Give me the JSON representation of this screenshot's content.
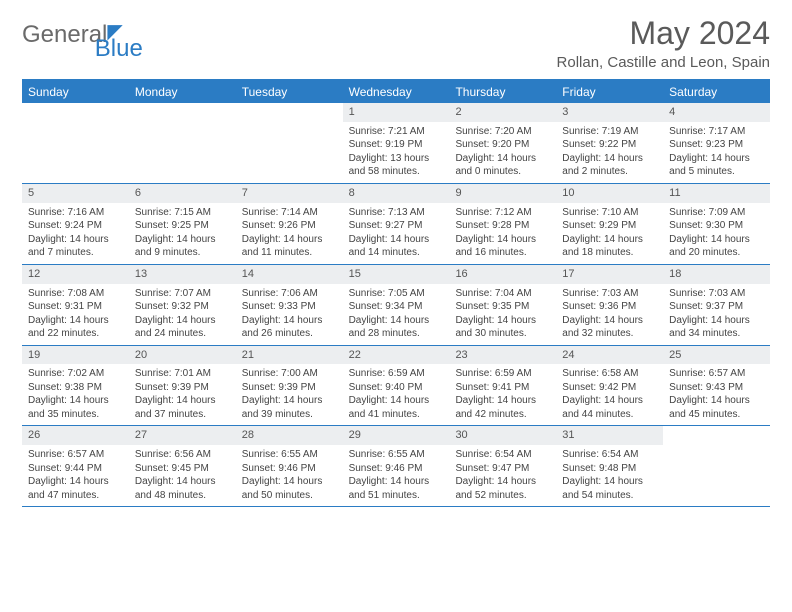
{
  "logo": {
    "general": "General",
    "blue": "Blue"
  },
  "title": "May 2024",
  "location": "Rollan, Castille and Leon, Spain",
  "header_bg": "#2b7cc4",
  "weekdays": [
    "Sunday",
    "Monday",
    "Tuesday",
    "Wednesday",
    "Thursday",
    "Friday",
    "Saturday"
  ],
  "weeks": [
    [
      {
        "n": "",
        "sr": "",
        "ss": "",
        "dl": "",
        "empty": true
      },
      {
        "n": "",
        "sr": "",
        "ss": "",
        "dl": "",
        "empty": true
      },
      {
        "n": "",
        "sr": "",
        "ss": "",
        "dl": "",
        "empty": true
      },
      {
        "n": "1",
        "sr": "Sunrise: 7:21 AM",
        "ss": "Sunset: 9:19 PM",
        "dl": "Daylight: 13 hours and 58 minutes."
      },
      {
        "n": "2",
        "sr": "Sunrise: 7:20 AM",
        "ss": "Sunset: 9:20 PM",
        "dl": "Daylight: 14 hours and 0 minutes."
      },
      {
        "n": "3",
        "sr": "Sunrise: 7:19 AM",
        "ss": "Sunset: 9:22 PM",
        "dl": "Daylight: 14 hours and 2 minutes."
      },
      {
        "n": "4",
        "sr": "Sunrise: 7:17 AM",
        "ss": "Sunset: 9:23 PM",
        "dl": "Daylight: 14 hours and 5 minutes."
      }
    ],
    [
      {
        "n": "5",
        "sr": "Sunrise: 7:16 AM",
        "ss": "Sunset: 9:24 PM",
        "dl": "Daylight: 14 hours and 7 minutes."
      },
      {
        "n": "6",
        "sr": "Sunrise: 7:15 AM",
        "ss": "Sunset: 9:25 PM",
        "dl": "Daylight: 14 hours and 9 minutes."
      },
      {
        "n": "7",
        "sr": "Sunrise: 7:14 AM",
        "ss": "Sunset: 9:26 PM",
        "dl": "Daylight: 14 hours and 11 minutes."
      },
      {
        "n": "8",
        "sr": "Sunrise: 7:13 AM",
        "ss": "Sunset: 9:27 PM",
        "dl": "Daylight: 14 hours and 14 minutes."
      },
      {
        "n": "9",
        "sr": "Sunrise: 7:12 AM",
        "ss": "Sunset: 9:28 PM",
        "dl": "Daylight: 14 hours and 16 minutes."
      },
      {
        "n": "10",
        "sr": "Sunrise: 7:10 AM",
        "ss": "Sunset: 9:29 PM",
        "dl": "Daylight: 14 hours and 18 minutes."
      },
      {
        "n": "11",
        "sr": "Sunrise: 7:09 AM",
        "ss": "Sunset: 9:30 PM",
        "dl": "Daylight: 14 hours and 20 minutes."
      }
    ],
    [
      {
        "n": "12",
        "sr": "Sunrise: 7:08 AM",
        "ss": "Sunset: 9:31 PM",
        "dl": "Daylight: 14 hours and 22 minutes."
      },
      {
        "n": "13",
        "sr": "Sunrise: 7:07 AM",
        "ss": "Sunset: 9:32 PM",
        "dl": "Daylight: 14 hours and 24 minutes."
      },
      {
        "n": "14",
        "sr": "Sunrise: 7:06 AM",
        "ss": "Sunset: 9:33 PM",
        "dl": "Daylight: 14 hours and 26 minutes."
      },
      {
        "n": "15",
        "sr": "Sunrise: 7:05 AM",
        "ss": "Sunset: 9:34 PM",
        "dl": "Daylight: 14 hours and 28 minutes."
      },
      {
        "n": "16",
        "sr": "Sunrise: 7:04 AM",
        "ss": "Sunset: 9:35 PM",
        "dl": "Daylight: 14 hours and 30 minutes."
      },
      {
        "n": "17",
        "sr": "Sunrise: 7:03 AM",
        "ss": "Sunset: 9:36 PM",
        "dl": "Daylight: 14 hours and 32 minutes."
      },
      {
        "n": "18",
        "sr": "Sunrise: 7:03 AM",
        "ss": "Sunset: 9:37 PM",
        "dl": "Daylight: 14 hours and 34 minutes."
      }
    ],
    [
      {
        "n": "19",
        "sr": "Sunrise: 7:02 AM",
        "ss": "Sunset: 9:38 PM",
        "dl": "Daylight: 14 hours and 35 minutes."
      },
      {
        "n": "20",
        "sr": "Sunrise: 7:01 AM",
        "ss": "Sunset: 9:39 PM",
        "dl": "Daylight: 14 hours and 37 minutes."
      },
      {
        "n": "21",
        "sr": "Sunrise: 7:00 AM",
        "ss": "Sunset: 9:39 PM",
        "dl": "Daylight: 14 hours and 39 minutes."
      },
      {
        "n": "22",
        "sr": "Sunrise: 6:59 AM",
        "ss": "Sunset: 9:40 PM",
        "dl": "Daylight: 14 hours and 41 minutes."
      },
      {
        "n": "23",
        "sr": "Sunrise: 6:59 AM",
        "ss": "Sunset: 9:41 PM",
        "dl": "Daylight: 14 hours and 42 minutes."
      },
      {
        "n": "24",
        "sr": "Sunrise: 6:58 AM",
        "ss": "Sunset: 9:42 PM",
        "dl": "Daylight: 14 hours and 44 minutes."
      },
      {
        "n": "25",
        "sr": "Sunrise: 6:57 AM",
        "ss": "Sunset: 9:43 PM",
        "dl": "Daylight: 14 hours and 45 minutes."
      }
    ],
    [
      {
        "n": "26",
        "sr": "Sunrise: 6:57 AM",
        "ss": "Sunset: 9:44 PM",
        "dl": "Daylight: 14 hours and 47 minutes."
      },
      {
        "n": "27",
        "sr": "Sunrise: 6:56 AM",
        "ss": "Sunset: 9:45 PM",
        "dl": "Daylight: 14 hours and 48 minutes."
      },
      {
        "n": "28",
        "sr": "Sunrise: 6:55 AM",
        "ss": "Sunset: 9:46 PM",
        "dl": "Daylight: 14 hours and 50 minutes."
      },
      {
        "n": "29",
        "sr": "Sunrise: 6:55 AM",
        "ss": "Sunset: 9:46 PM",
        "dl": "Daylight: 14 hours and 51 minutes."
      },
      {
        "n": "30",
        "sr": "Sunrise: 6:54 AM",
        "ss": "Sunset: 9:47 PM",
        "dl": "Daylight: 14 hours and 52 minutes."
      },
      {
        "n": "31",
        "sr": "Sunrise: 6:54 AM",
        "ss": "Sunset: 9:48 PM",
        "dl": "Daylight: 14 hours and 54 minutes."
      },
      {
        "n": "",
        "sr": "",
        "ss": "",
        "dl": "",
        "empty": true
      }
    ]
  ]
}
